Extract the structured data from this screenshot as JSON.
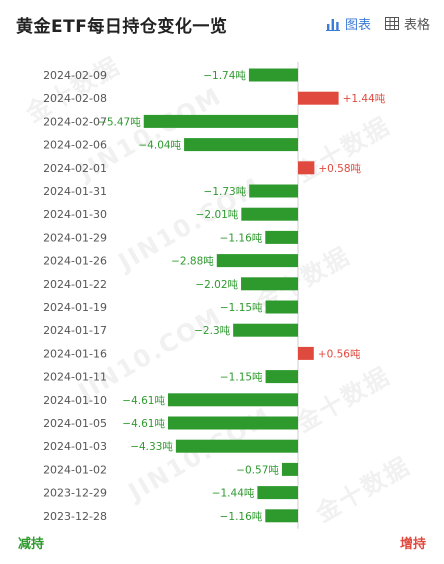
{
  "header": {
    "title": "黄金ETF每日持仓变化一览",
    "tabs": [
      {
        "label": "图表",
        "icon": "bar-chart-icon",
        "active": true
      },
      {
        "label": "表格",
        "icon": "table-icon",
        "active": false
      }
    ]
  },
  "footer": {
    "left_label": "减持",
    "right_label": "增持"
  },
  "watermark": {
    "text_cn": "金十数据",
    "text_en": "JIN10.COM"
  },
  "colors": {
    "negative": "#2e9a2e",
    "positive": "#e0493e",
    "negative_label": "#2e9a2e",
    "positive_label": "#e0493e"
  },
  "chart_data": {
    "type": "bar",
    "orientation": "horizontal",
    "title": "黄金ETF每日持仓变化一览",
    "unit": "吨",
    "categories": [
      "2024-02-09",
      "2024-02-08",
      "2024-02-07",
      "2024-02-06",
      "2024-02-01",
      "2024-01-31",
      "2024-01-30",
      "2024-01-29",
      "2024-01-26",
      "2024-01-22",
      "2024-01-19",
      "2024-01-17",
      "2024-01-16",
      "2024-01-11",
      "2024-01-10",
      "2024-01-05",
      "2024-01-03",
      "2024-01-02",
      "2023-12-29",
      "2023-12-28"
    ],
    "values": [
      -1.74,
      1.44,
      -5.47,
      -4.04,
      0.58,
      -1.73,
      -2.01,
      -1.16,
      -2.88,
      -2.02,
      -1.15,
      -2.3,
      0.56,
      -1.15,
      -4.61,
      -4.61,
      -4.33,
      -0.57,
      -1.44,
      -1.16
    ],
    "data_labels": [
      "−1.74吨",
      "+1.44吨",
      "−5.47吨",
      "−4.04吨",
      "+0.58吨",
      "−1.73吨",
      "−2.01吨",
      "−1.16吨",
      "−2.88吨",
      "−2.02吨",
      "−1.15吨",
      "−2.3吨",
      "+0.56吨",
      "−1.15吨",
      "−4.61吨",
      "−4.61吨",
      "−4.33吨",
      "−0.57吨",
      "−1.44吨",
      "−1.16吨"
    ],
    "xlim": [
      -6.5,
      2.6
    ],
    "xticks": [
      -6,
      -5,
      -4,
      -3,
      -2,
      -1,
      0,
      1,
      2
    ],
    "xtick_labels": [
      "−6",
      "−5",
      "−4",
      "−3",
      "−2",
      "−1",
      "0",
      "1",
      "2"
    ],
    "grid": false
  }
}
